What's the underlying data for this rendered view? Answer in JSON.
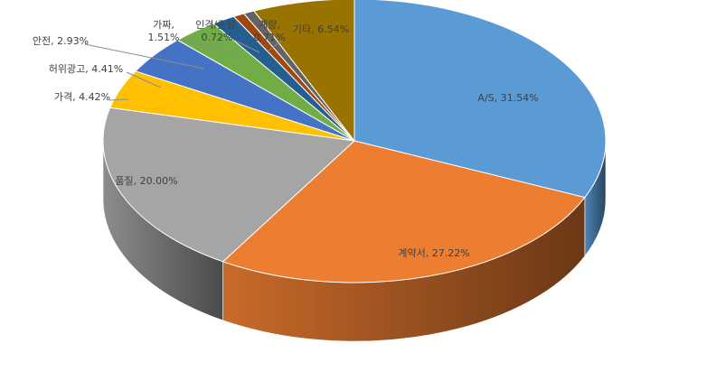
{
  "chart_data": {
    "type": "pie",
    "title": "",
    "slices": [
      {
        "label": "A/S",
        "value": 31.54,
        "text": "A/S, 31.54%",
        "color": "#5B9BD5"
      },
      {
        "label": "계약서",
        "value": 27.22,
        "text": "계약서, 27.22%",
        "color": "#ED7D31"
      },
      {
        "label": "품질",
        "value": 20.0,
        "text": "품질, 20.00%",
        "color": "#A5A5A5"
      },
      {
        "label": "가격",
        "value": 4.42,
        "text": "가격, 4.42%",
        "color": "#FFC000"
      },
      {
        "label": "허위광고",
        "value": 4.41,
        "text": "허위광고, 4.41%",
        "color": "#4472C4"
      },
      {
        "label": "안전",
        "value": 2.93,
        "text": "안전, 2.93%",
        "color": "#70AD47"
      },
      {
        "label": "가짜",
        "value": 1.51,
        "text": "가짜,\n1.51%",
        "color": "#255E91"
      },
      {
        "label": "인격/존엄",
        "value": 0.72,
        "text": "인격/존엄,\n0.72%",
        "color": "#9E480E"
      },
      {
        "label": "계량",
        "value": 0.71,
        "text": "계량,\n0.71%",
        "color": "#636363"
      },
      {
        "label": "기타",
        "value": 6.54,
        "text": "기타, 6.54%",
        "color": "#997300"
      }
    ]
  }
}
